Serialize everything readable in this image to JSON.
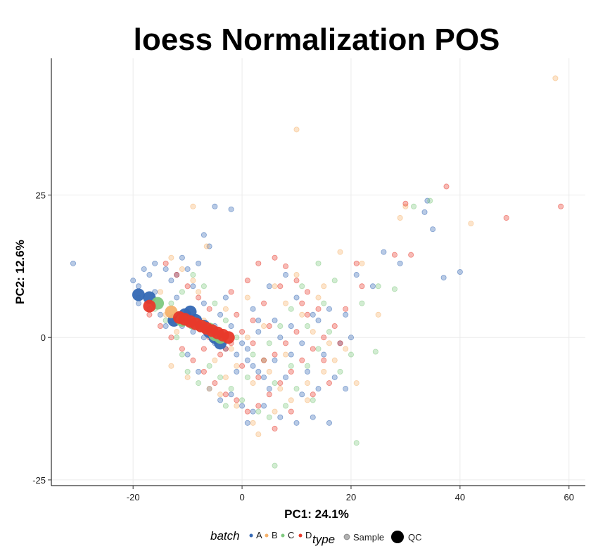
{
  "chart_data": {
    "type": "scatter",
    "title": "loess Normalization  POS",
    "xlabel": "PC1: 24.1%",
    "ylabel": "PC2: 12.6%",
    "xlim": [
      -35,
      63
    ],
    "ylim": [
      -26,
      49
    ],
    "xticks": [
      -20,
      0,
      20,
      40,
      60
    ],
    "yticks": [
      -25,
      0,
      25
    ],
    "grid": true,
    "legend": {
      "position": "bottom",
      "batch": {
        "title": "batch",
        "entries": [
          {
            "label": "A",
            "color": "#3468b4"
          },
          {
            "label": "B",
            "color": "#f6b26b"
          },
          {
            "label": "C",
            "color": "#7fc97f"
          },
          {
            "label": "D",
            "color": "#e8392a"
          }
        ]
      },
      "type": {
        "title": "type",
        "entries": [
          {
            "label": "Sample"
          },
          {
            "label": "QC"
          }
        ]
      }
    },
    "series": [
      {
        "name": "A",
        "color": "#3468b4",
        "samples": [
          [
            -31,
            13
          ],
          [
            -20,
            10
          ],
          [
            -19,
            9
          ],
          [
            -18,
            12
          ],
          [
            -17,
            11
          ],
          [
            -16,
            13
          ],
          [
            -14,
            12
          ],
          [
            -13,
            10
          ],
          [
            -12,
            11
          ],
          [
            -11,
            14
          ],
          [
            -10,
            12
          ],
          [
            -8,
            13
          ],
          [
            -6,
            16
          ],
          [
            -7,
            18
          ],
          [
            -5,
            23
          ],
          [
            -2,
            22.5
          ],
          [
            -19,
            6
          ],
          [
            -17,
            5
          ],
          [
            -15,
            4
          ],
          [
            -13,
            3
          ],
          [
            -11,
            2
          ],
          [
            -9,
            1
          ],
          [
            -7,
            0
          ],
          [
            -5,
            -1
          ],
          [
            -3,
            -2
          ],
          [
            -1,
            -3
          ],
          [
            1,
            -4
          ],
          [
            2,
            -5
          ],
          [
            3,
            -6
          ],
          [
            4,
            -7
          ],
          [
            -2,
            -10
          ],
          [
            0,
            -12
          ],
          [
            1,
            -15
          ],
          [
            2,
            -13
          ],
          [
            5,
            -9
          ],
          [
            7,
            -14
          ],
          [
            10,
            -15
          ],
          [
            13,
            -14
          ],
          [
            16,
            -15
          ],
          [
            14,
            -9
          ],
          [
            17,
            -7
          ],
          [
            19,
            -9
          ],
          [
            12,
            -6
          ],
          [
            15,
            -3
          ],
          [
            18,
            -1
          ],
          [
            20,
            0
          ],
          [
            14,
            3
          ],
          [
            16,
            5
          ],
          [
            19,
            4
          ],
          [
            21,
            11
          ],
          [
            24,
            9
          ],
          [
            26,
            15
          ],
          [
            29,
            13
          ],
          [
            34,
            24
          ],
          [
            35,
            19
          ],
          [
            40,
            11.5
          ],
          [
            37,
            10.5
          ],
          [
            33.5,
            22
          ],
          [
            9,
            2
          ],
          [
            11,
            -1
          ],
          [
            6,
            3
          ],
          [
            3,
            1
          ],
          [
            0,
            -1
          ],
          [
            -2,
            2
          ],
          [
            -4,
            4
          ],
          [
            -8,
            -6
          ],
          [
            -6,
            -9
          ],
          [
            -4,
            -11
          ],
          [
            -10,
            -3
          ],
          [
            -14,
            2
          ],
          [
            -16,
            8
          ],
          [
            -12,
            7
          ],
          [
            -9,
            9
          ],
          [
            -7,
            6
          ],
          [
            -3,
            7
          ],
          [
            2,
            5
          ],
          [
            5,
            9
          ],
          [
            8,
            11
          ],
          [
            10,
            7
          ],
          [
            13,
            4
          ],
          [
            6,
            -4
          ],
          [
            8,
            -7
          ],
          [
            11,
            -10
          ],
          [
            4,
            -12
          ],
          [
            -1,
            -6
          ],
          [
            1,
            -2
          ],
          [
            3,
            3
          ],
          [
            -5,
            2
          ],
          [
            7,
            0
          ],
          [
            9,
            -3
          ]
        ],
        "qc": [
          [
            -19,
            7.5
          ],
          [
            -17,
            7
          ],
          [
            -12.5,
            3
          ],
          [
            -11.5,
            3.5
          ],
          [
            -10.5,
            4
          ],
          [
            -9.5,
            4.5
          ],
          [
            -8.5,
            3
          ],
          [
            -7,
            2
          ],
          [
            -6,
            1
          ],
          [
            -5,
            0
          ],
          [
            -4,
            -1
          ]
        ]
      },
      {
        "name": "B",
        "color": "#f6b26b",
        "samples": [
          [
            57.5,
            45.5
          ],
          [
            10,
            36.5
          ],
          [
            -9,
            23
          ],
          [
            -6.5,
            16
          ],
          [
            -13,
            14
          ],
          [
            -11,
            12
          ],
          [
            -9,
            10
          ],
          [
            -8,
            8
          ],
          [
            -15,
            8
          ],
          [
            -17,
            6
          ],
          [
            -14,
            4
          ],
          [
            -12,
            1
          ],
          [
            -13,
            -5
          ],
          [
            -10,
            -7
          ],
          [
            -6,
            -9
          ],
          [
            -4,
            -10
          ],
          [
            -1,
            -12
          ],
          [
            2,
            -15
          ],
          [
            3,
            -17
          ],
          [
            6,
            -13
          ],
          [
            9,
            -11
          ],
          [
            12,
            -8
          ],
          [
            15,
            -6
          ],
          [
            17,
            -4
          ],
          [
            19,
            -2
          ],
          [
            21,
            -8
          ],
          [
            14,
            7
          ],
          [
            15,
            9
          ],
          [
            18,
            15
          ],
          [
            22,
            13
          ],
          [
            29,
            21
          ],
          [
            30,
            23
          ],
          [
            42,
            20
          ],
          [
            25,
            4
          ],
          [
            10,
            11
          ],
          [
            8,
            6
          ],
          [
            4,
            2
          ],
          [
            1,
            0
          ],
          [
            -2,
            -2
          ],
          [
            -5,
            -4
          ],
          [
            -7,
            3
          ],
          [
            -3,
            5
          ],
          [
            1,
            7
          ],
          [
            6,
            9
          ],
          [
            11,
            4
          ],
          [
            13,
            1
          ],
          [
            16,
            -1
          ],
          [
            8,
            -3
          ],
          [
            5,
            -6
          ],
          [
            2,
            -8
          ],
          [
            -1,
            -5
          ],
          [
            -3,
            -7
          ],
          [
            7,
            -9
          ],
          [
            12,
            -11
          ]
        ],
        "qc": [
          [
            -13,
            4.5
          ]
        ]
      },
      {
        "name": "C",
        "color": "#7fc97f",
        "samples": [
          [
            34.5,
            24
          ],
          [
            31.5,
            23
          ],
          [
            28,
            8.5
          ],
          [
            25,
            9
          ],
          [
            24.5,
            -2.5
          ],
          [
            21,
            -18.5
          ],
          [
            6,
            -22.5
          ],
          [
            -19,
            7
          ],
          [
            -16,
            5
          ],
          [
            -14,
            3
          ],
          [
            -12,
            0
          ],
          [
            -11,
            -3
          ],
          [
            -10,
            -6
          ],
          [
            -8,
            -8
          ],
          [
            -6,
            -5
          ],
          [
            -4,
            -7
          ],
          [
            -2,
            -9
          ],
          [
            0,
            -11
          ],
          [
            3,
            -13
          ],
          [
            5,
            -14
          ],
          [
            8,
            -12
          ],
          [
            10,
            -9
          ],
          [
            12,
            -5
          ],
          [
            14,
            -2
          ],
          [
            16,
            1
          ],
          [
            15,
            6
          ],
          [
            17,
            10
          ],
          [
            14,
            13
          ],
          [
            11,
            9
          ],
          [
            9,
            5
          ],
          [
            7,
            2
          ],
          [
            5,
            -1
          ],
          [
            2,
            -3
          ],
          [
            -1,
            0
          ],
          [
            -3,
            3
          ],
          [
            -5,
            6
          ],
          [
            -7,
            9
          ],
          [
            -9,
            11
          ],
          [
            -11,
            8
          ],
          [
            -13,
            6
          ],
          [
            -3,
            -12
          ],
          [
            1,
            -7
          ],
          [
            4,
            -4
          ],
          [
            6,
            -8
          ],
          [
            9,
            -5
          ],
          [
            12,
            2
          ],
          [
            18,
            -6
          ],
          [
            20,
            -3
          ],
          [
            22,
            6
          ],
          [
            13,
            -11
          ]
        ],
        "qc": [
          [
            -15.5,
            6
          ],
          [
            -11,
            3
          ],
          [
            -9,
            2.5
          ],
          [
            -7.5,
            2
          ],
          [
            -6,
            1.5
          ],
          [
            -5,
            0.5
          ],
          [
            -4,
            0
          ]
        ]
      },
      {
        "name": "D",
        "color": "#e8392a",
        "samples": [
          [
            37.5,
            26.5
          ],
          [
            30,
            23.5
          ],
          [
            58.5,
            23
          ],
          [
            48.5,
            21
          ],
          [
            31,
            14.5
          ],
          [
            28,
            14.5
          ],
          [
            21,
            13
          ],
          [
            18,
            -1
          ],
          [
            6,
            14
          ],
          [
            8,
            12.5
          ],
          [
            -14,
            13
          ],
          [
            -12,
            11
          ],
          [
            -10,
            9
          ],
          [
            -8,
            7
          ],
          [
            -6,
            5
          ],
          [
            -17,
            4
          ],
          [
            -15,
            2
          ],
          [
            -13,
            0
          ],
          [
            -11,
            -2
          ],
          [
            -9,
            -4
          ],
          [
            -7,
            -6
          ],
          [
            -5,
            -8
          ],
          [
            -3,
            -10
          ],
          [
            -1,
            -11
          ],
          [
            1,
            -13
          ],
          [
            3,
            -12
          ],
          [
            5,
            -10
          ],
          [
            7,
            -8
          ],
          [
            9,
            -6
          ],
          [
            11,
            -4
          ],
          [
            13,
            -2
          ],
          [
            15,
            0
          ],
          [
            17,
            2
          ],
          [
            14,
            5
          ],
          [
            12,
            8
          ],
          [
            10,
            10
          ],
          [
            7,
            9
          ],
          [
            4,
            6
          ],
          [
            2,
            3
          ],
          [
            0,
            1
          ],
          [
            -2,
            -1
          ],
          [
            -4,
            -3
          ],
          [
            -6,
            0
          ],
          [
            -8,
            2
          ],
          [
            -2,
            8
          ],
          [
            1,
            10
          ],
          [
            3,
            13
          ],
          [
            6,
            -3
          ],
          [
            8,
            -1
          ],
          [
            10,
            1
          ],
          [
            12,
            4
          ],
          [
            15,
            -4
          ],
          [
            19,
            5
          ],
          [
            22,
            9
          ],
          [
            16,
            -8
          ],
          [
            13,
            -10
          ],
          [
            9,
            -13
          ],
          [
            6,
            -16
          ],
          [
            3,
            -7
          ],
          [
            0,
            -5
          ],
          [
            -3,
            -2
          ],
          [
            -7,
            -2
          ],
          [
            5,
            2
          ],
          [
            11,
            6
          ],
          [
            -1,
            4
          ],
          [
            2,
            -1
          ],
          [
            4,
            -4
          ]
        ],
        "qc": [
          [
            -17,
            5.5
          ],
          [
            -11.5,
            3.5
          ],
          [
            -10.5,
            3.2
          ],
          [
            -9.5,
            2.8
          ],
          [
            -8.5,
            2.4
          ],
          [
            -7.5,
            2
          ],
          [
            -6.5,
            1.6
          ],
          [
            -5.5,
            1.2
          ],
          [
            -4.5,
            0.8
          ],
          [
            -3.5,
            0.4
          ],
          [
            -2.5,
            0
          ]
        ]
      }
    ]
  }
}
